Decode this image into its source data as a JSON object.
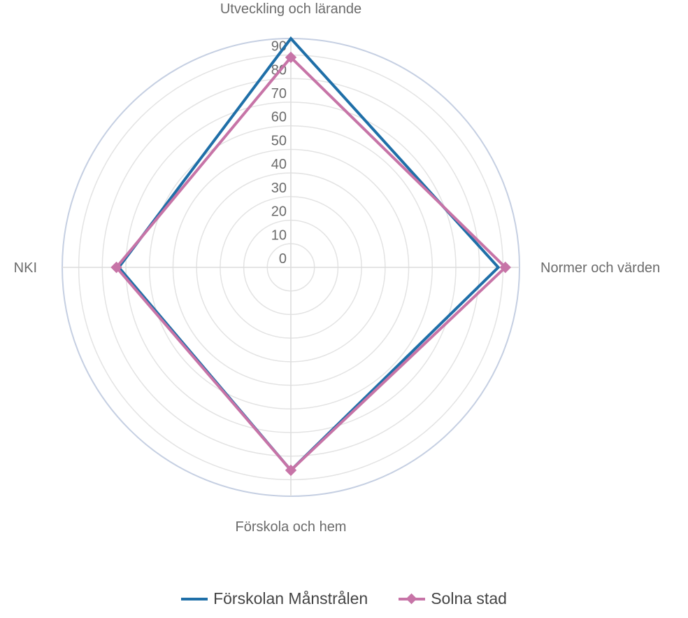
{
  "chart_data": {
    "type": "radar",
    "axes": [
      "Utveckling och lärande",
      "Normer och värden",
      "Förskola och hem",
      "NKI"
    ],
    "rlim": [
      0,
      97
    ],
    "ticks": [
      "0",
      "10",
      "20",
      "30",
      "40",
      "50",
      "60",
      "70",
      "80",
      "90"
    ],
    "tick_values": [
      0,
      10,
      20,
      30,
      40,
      50,
      60,
      70,
      80,
      90
    ],
    "grid": true,
    "legend_position": "bottom",
    "series": [
      {
        "name": "Förskolan Månstrålen",
        "values": [
          97,
          88,
          86,
          73
        ],
        "color": "#1f6fa8",
        "marker": "none"
      },
      {
        "name": "Solna stad",
        "values": [
          89,
          91,
          86,
          74
        ],
        "color": "#c774a7",
        "marker": "diamond"
      }
    ]
  }
}
